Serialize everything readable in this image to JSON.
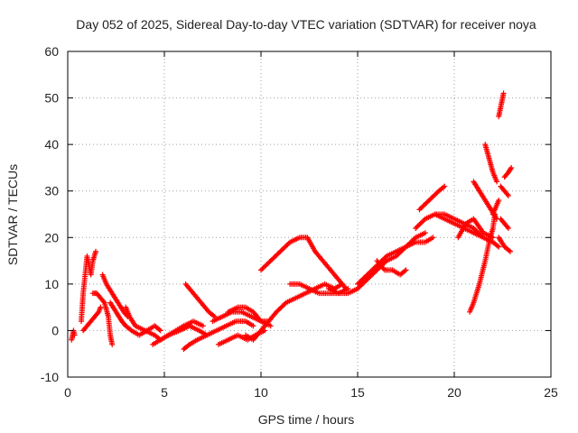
{
  "chart_data": {
    "type": "scatter",
    "title": "Day 052 of 2025, Sidereal Day-to-day VTEC variation (SDTVAR) for receiver noya",
    "xlabel": "GPS time / hours",
    "ylabel": "SDTVAR / TECUs",
    "xlim": [
      0,
      25
    ],
    "ylim": [
      -10,
      60
    ],
    "xticks": [
      0,
      5,
      10,
      15,
      20,
      25
    ],
    "yticks": [
      -10,
      0,
      10,
      20,
      30,
      40,
      50,
      60
    ],
    "grid": true,
    "marker": "+",
    "color": "#ff0000",
    "series": [
      {
        "name": "s1",
        "points": [
          [
            0.2,
            -2
          ],
          [
            0.3,
            0
          ],
          [
            0.35,
            -1
          ]
        ]
      },
      {
        "name": "s2",
        "points": [
          [
            0.7,
            2
          ],
          [
            0.8,
            8
          ],
          [
            0.9,
            12
          ],
          [
            1.0,
            16
          ],
          [
            1.2,
            12
          ],
          [
            1.3,
            15
          ],
          [
            1.45,
            17
          ]
        ]
      },
      {
        "name": "s3",
        "points": [
          [
            0.8,
            0
          ],
          [
            1.0,
            1
          ],
          [
            1.2,
            2
          ],
          [
            1.4,
            3
          ],
          [
            1.6,
            4
          ],
          [
            1.7,
            5
          ]
        ]
      },
      {
        "name": "s4",
        "points": [
          [
            1.3,
            8
          ],
          [
            1.5,
            8
          ],
          [
            1.7,
            7
          ],
          [
            1.9,
            6
          ],
          [
            2.1,
            3
          ],
          [
            2.2,
            -1
          ],
          [
            2.3,
            -3
          ]
        ]
      },
      {
        "name": "s5",
        "points": [
          [
            1.8,
            12
          ],
          [
            2.0,
            10
          ],
          [
            2.3,
            8
          ],
          [
            2.6,
            6
          ],
          [
            2.9,
            4
          ],
          [
            3.1,
            3
          ]
        ]
      },
      {
        "name": "s6",
        "points": [
          [
            2.2,
            6
          ],
          [
            2.5,
            4
          ],
          [
            2.8,
            2
          ],
          [
            3.0,
            1
          ],
          [
            3.3,
            0
          ],
          [
            3.7,
            -1
          ],
          [
            4.1,
            0
          ],
          [
            4.5,
            1
          ],
          [
            4.8,
            0
          ]
        ]
      },
      {
        "name": "s7",
        "points": [
          [
            3.0,
            5
          ],
          [
            3.2,
            3
          ],
          [
            3.5,
            1
          ],
          [
            4.0,
            0
          ],
          [
            4.5,
            -1
          ],
          [
            4.8,
            -2
          ],
          [
            5.2,
            -1
          ],
          [
            5.6,
            0
          ],
          [
            6.0,
            1
          ],
          [
            6.5,
            2
          ],
          [
            7.0,
            1
          ]
        ]
      },
      {
        "name": "s8",
        "points": [
          [
            4.4,
            -3
          ],
          [
            4.8,
            -2
          ],
          [
            5.2,
            -1
          ],
          [
            5.8,
            0
          ],
          [
            6.3,
            1
          ],
          [
            6.8,
            0
          ],
          [
            7.2,
            -1
          ]
        ]
      },
      {
        "name": "s9",
        "points": [
          [
            6.1,
            10
          ],
          [
            6.5,
            8
          ],
          [
            6.9,
            6
          ],
          [
            7.3,
            4
          ],
          [
            7.6,
            3
          ]
        ]
      },
      {
        "name": "s10",
        "points": [
          [
            6.0,
            -4
          ],
          [
            6.3,
            -3
          ],
          [
            6.7,
            -2
          ],
          [
            7.2,
            -1
          ],
          [
            7.7,
            0
          ],
          [
            8.2,
            1
          ],
          [
            8.7,
            2
          ],
          [
            9.2,
            2
          ],
          [
            9.6,
            1
          ]
        ]
      },
      {
        "name": "s11",
        "points": [
          [
            7.8,
            -3
          ],
          [
            8.3,
            -2
          ],
          [
            8.8,
            -1
          ],
          [
            9.3,
            -2
          ],
          [
            9.7,
            -1
          ],
          [
            10.2,
            0
          ]
        ]
      },
      {
        "name": "s12",
        "points": [
          [
            7.5,
            2
          ],
          [
            8.0,
            3
          ],
          [
            8.5,
            4
          ],
          [
            9.0,
            4
          ],
          [
            9.5,
            3
          ],
          [
            10.0,
            2
          ],
          [
            10.4,
            2
          ]
        ]
      },
      {
        "name": "s13",
        "points": [
          [
            8.3,
            4
          ],
          [
            8.8,
            5
          ],
          [
            9.2,
            5
          ],
          [
            9.6,
            4
          ],
          [
            10.0,
            2
          ],
          [
            10.5,
            1
          ]
        ]
      },
      {
        "name": "s14",
        "points": [
          [
            9.2,
            -1
          ],
          [
            9.6,
            -2
          ],
          [
            10.0,
            0
          ],
          [
            10.4,
            2
          ],
          [
            10.8,
            4
          ],
          [
            11.3,
            6
          ],
          [
            11.8,
            7
          ],
          [
            12.3,
            8
          ],
          [
            12.8,
            9
          ],
          [
            13.3,
            10
          ],
          [
            13.8,
            9
          ],
          [
            14.2,
            10
          ]
        ]
      },
      {
        "name": "s15",
        "points": [
          [
            10.0,
            13
          ],
          [
            10.5,
            15
          ],
          [
            11.0,
            17
          ],
          [
            11.5,
            19
          ],
          [
            12.0,
            20
          ],
          [
            12.4,
            20
          ],
          [
            12.8,
            17
          ],
          [
            13.2,
            15
          ],
          [
            13.6,
            13
          ],
          [
            14.0,
            11
          ],
          [
            14.4,
            9
          ]
        ]
      },
      {
        "name": "s16",
        "points": [
          [
            11.5,
            10
          ],
          [
            12.0,
            10
          ],
          [
            12.5,
            9
          ],
          [
            13.0,
            8
          ],
          [
            13.5,
            8
          ],
          [
            14.0,
            8
          ],
          [
            14.5,
            9
          ]
        ]
      },
      {
        "name": "s17",
        "points": [
          [
            13.5,
            9
          ],
          [
            14.0,
            8
          ],
          [
            14.5,
            8
          ],
          [
            15.0,
            9
          ],
          [
            15.5,
            11
          ],
          [
            16.0,
            13
          ],
          [
            16.5,
            15
          ],
          [
            17.0,
            16
          ],
          [
            17.5,
            18
          ],
          [
            18.0,
            19
          ],
          [
            18.5,
            19
          ],
          [
            18.9,
            20
          ]
        ]
      },
      {
        "name": "s18",
        "points": [
          [
            15.0,
            10
          ],
          [
            15.5,
            12
          ],
          [
            16.0,
            14
          ],
          [
            16.5,
            16
          ],
          [
            17.0,
            17
          ],
          [
            17.5,
            18
          ],
          [
            18.0,
            20
          ],
          [
            18.5,
            21
          ]
        ]
      },
      {
        "name": "s19",
        "points": [
          [
            16.0,
            15
          ],
          [
            16.4,
            13
          ],
          [
            16.8,
            13
          ],
          [
            17.2,
            12
          ],
          [
            17.5,
            13
          ]
        ]
      },
      {
        "name": "s20",
        "points": [
          [
            18.0,
            22
          ],
          [
            18.5,
            24
          ],
          [
            19.0,
            25
          ],
          [
            19.5,
            24
          ],
          [
            20.0,
            23
          ],
          [
            20.5,
            22
          ],
          [
            21.0,
            21
          ],
          [
            21.5,
            20
          ]
        ]
      },
      {
        "name": "s21",
        "points": [
          [
            18.2,
            26
          ],
          [
            18.7,
            28
          ],
          [
            19.2,
            30
          ],
          [
            19.5,
            31
          ]
        ]
      },
      {
        "name": "s22",
        "points": [
          [
            19.0,
            25
          ],
          [
            19.5,
            25
          ],
          [
            20.0,
            24
          ],
          [
            20.5,
            23
          ],
          [
            21.0,
            22
          ],
          [
            21.5,
            20
          ],
          [
            22.0,
            19
          ],
          [
            22.3,
            18
          ]
        ]
      },
      {
        "name": "s23",
        "points": [
          [
            20.2,
            20
          ],
          [
            20.6,
            23
          ],
          [
            21.0,
            24
          ],
          [
            21.5,
            21
          ],
          [
            22.0,
            20
          ]
        ]
      },
      {
        "name": "s24",
        "points": [
          [
            20.8,
            4
          ],
          [
            21.0,
            6
          ],
          [
            21.3,
            10
          ],
          [
            21.6,
            15
          ],
          [
            21.8,
            19
          ],
          [
            22.0,
            22
          ],
          [
            22.1,
            25
          ]
        ]
      },
      {
        "name": "s25",
        "points": [
          [
            21.0,
            32
          ],
          [
            21.3,
            30
          ],
          [
            21.6,
            28
          ],
          [
            21.9,
            26
          ],
          [
            22.2,
            24
          ]
        ]
      },
      {
        "name": "s26",
        "points": [
          [
            21.6,
            40
          ],
          [
            21.8,
            37
          ],
          [
            22.0,
            34
          ],
          [
            22.2,
            32
          ]
        ]
      },
      {
        "name": "s27",
        "points": [
          [
            22.0,
            25
          ],
          [
            22.2,
            27
          ],
          [
            22.3,
            28
          ]
        ]
      },
      {
        "name": "s28",
        "points": [
          [
            22.4,
            31
          ],
          [
            22.6,
            30
          ],
          [
            22.8,
            29
          ]
        ]
      },
      {
        "name": "s29",
        "points": [
          [
            22.6,
            33
          ],
          [
            22.8,
            34
          ],
          [
            22.95,
            35
          ]
        ]
      },
      {
        "name": "s30",
        "points": [
          [
            22.4,
            24
          ],
          [
            22.6,
            23
          ],
          [
            22.8,
            22
          ]
        ]
      },
      {
        "name": "s31",
        "points": [
          [
            22.3,
            20
          ],
          [
            22.6,
            18
          ],
          [
            22.9,
            17
          ]
        ]
      },
      {
        "name": "s32",
        "points": [
          [
            22.3,
            46
          ],
          [
            22.4,
            48
          ],
          [
            22.5,
            50
          ],
          [
            22.55,
            51
          ]
        ]
      }
    ]
  }
}
